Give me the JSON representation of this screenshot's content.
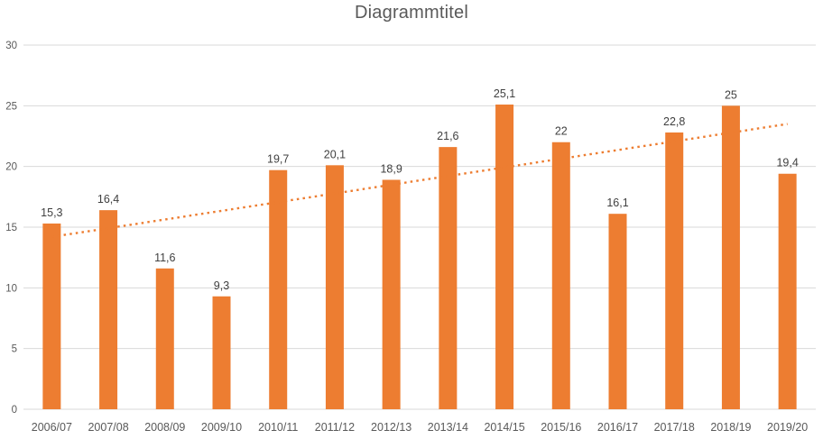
{
  "chart_data": {
    "type": "bar",
    "title": "Diagrammtitel",
    "categories": [
      "2006/07",
      "2007/08",
      "2008/09",
      "2009/10",
      "2010/11",
      "2011/12",
      "2012/13",
      "2013/14",
      "2014/15",
      "2015/16",
      "2016/17",
      "2017/18",
      "2018/19",
      "2019/20"
    ],
    "values": [
      15.3,
      16.4,
      11.6,
      9.3,
      19.7,
      20.1,
      18.9,
      21.6,
      25.1,
      22,
      16.1,
      22.8,
      25,
      19.4
    ],
    "value_labels": [
      "15,3",
      "16,4",
      "11,6",
      "9,3",
      "19,7",
      "20,1",
      "18,9",
      "21,6",
      "25,1",
      "22",
      "16,1",
      "22,8",
      "25",
      "19,4"
    ],
    "xlabel": "",
    "ylabel": "",
    "y_ticks": [
      0,
      5,
      10,
      15,
      20,
      25,
      30
    ],
    "ylim": [
      0,
      30
    ],
    "grid": true,
    "legend": "none",
    "decimal_separator": ",",
    "colors": {
      "bar": "#ED7D31",
      "trendline": "#ED7D31",
      "gridline": "#D9D9D9",
      "axis_labels": "#595959",
      "data_labels": "#404040",
      "title": "#595959",
      "background": "#FFFFFF"
    },
    "trendline": {
      "type": "linear",
      "style": "dotted",
      "start_value": 14.2,
      "end_value": 23.5
    }
  }
}
